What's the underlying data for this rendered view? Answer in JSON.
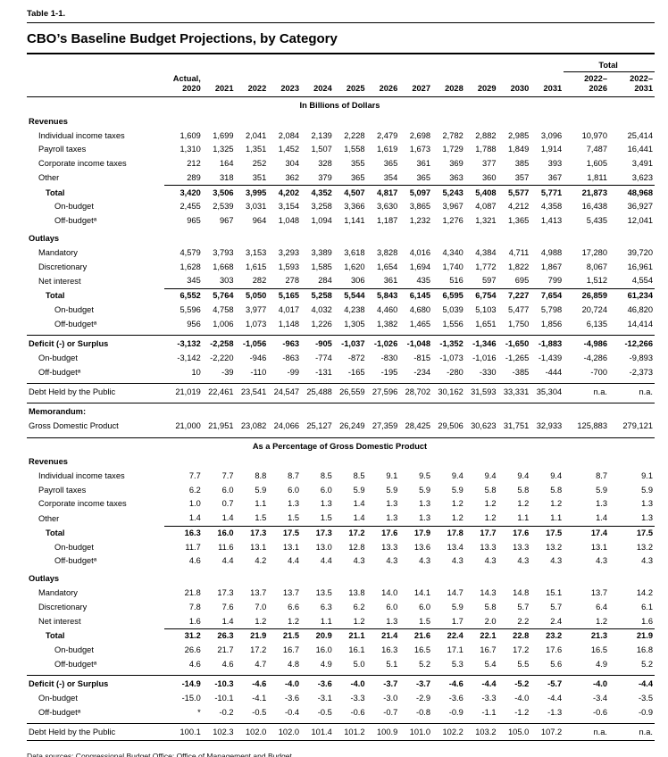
{
  "table_label": "Table 1-1.",
  "title": "CBO’s Baseline Budget Projections, by Category",
  "header": {
    "total_label": "Total",
    "col1": {
      "line1": "Actual,",
      "line2": "2020"
    },
    "years": [
      "2021",
      "2022",
      "2023",
      "2024",
      "2025",
      "2026",
      "2027",
      "2028",
      "2029",
      "2030",
      "2031"
    ],
    "totals": [
      {
        "line1": "2022–",
        "line2": "2026"
      },
      {
        "line1": "2022–",
        "line2": "2031"
      }
    ]
  },
  "rows": [
    {
      "type": "c",
      "label": "In Billions of Dollars"
    },
    {
      "type": "s",
      "label": "Revenues"
    },
    {
      "type": "d",
      "indent": 1,
      "label": "Individual income taxes",
      "values": [
        "1,609",
        "1,699",
        "2,041",
        "2,084",
        "2,139",
        "2,228",
        "2,479",
        "2,698",
        "2,782",
        "2,882",
        "2,985",
        "3,096",
        "10,970",
        "25,414"
      ]
    },
    {
      "type": "d",
      "indent": 1,
      "label": "Payroll taxes",
      "values": [
        "1,310",
        "1,325",
        "1,351",
        "1,452",
        "1,507",
        "1,558",
        "1,619",
        "1,673",
        "1,729",
        "1,788",
        "1,849",
        "1,914",
        "7,487",
        "16,441"
      ]
    },
    {
      "type": "d",
      "indent": 1,
      "label": "Corporate income taxes",
      "values": [
        "212",
        "164",
        "252",
        "304",
        "328",
        "355",
        "365",
        "361",
        "369",
        "377",
        "385",
        "393",
        "1,605",
        "3,491"
      ]
    },
    {
      "type": "d",
      "indent": 1,
      "label": "Other",
      "values": [
        "289",
        "318",
        "351",
        "362",
        "379",
        "365",
        "354",
        "365",
        "363",
        "360",
        "357",
        "367",
        "1,811",
        "3,623"
      ]
    },
    {
      "type": "d",
      "indent": 2,
      "bold": true,
      "rule": "v",
      "label": "Total",
      "values": [
        "3,420",
        "3,506",
        "3,995",
        "4,202",
        "4,352",
        "4,507",
        "4,817",
        "5,097",
        "5,243",
        "5,408",
        "5,577",
        "5,771",
        "21,873",
        "48,968"
      ]
    },
    {
      "type": "d",
      "indent": 3,
      "label": "On-budget",
      "values": [
        "2,455",
        "2,539",
        "3,031",
        "3,154",
        "3,258",
        "3,366",
        "3,630",
        "3,865",
        "3,967",
        "4,087",
        "4,212",
        "4,358",
        "16,438",
        "36,927"
      ]
    },
    {
      "type": "d",
      "indent": 3,
      "label": "Off-budgetᵃ",
      "values": [
        "965",
        "967",
        "964",
        "1,048",
        "1,094",
        "1,141",
        "1,187",
        "1,232",
        "1,276",
        "1,321",
        "1,365",
        "1,413",
        "5,435",
        "12,041"
      ]
    },
    {
      "type": "s",
      "gap": true,
      "label": "Outlays"
    },
    {
      "type": "d",
      "indent": 1,
      "label": "Mandatory",
      "values": [
        "4,579",
        "3,793",
        "3,153",
        "3,293",
        "3,389",
        "3,618",
        "3,828",
        "4,016",
        "4,340",
        "4,384",
        "4,711",
        "4,988",
        "17,280",
        "39,720"
      ]
    },
    {
      "type": "d",
      "indent": 1,
      "label": "Discretionary",
      "values": [
        "1,628",
        "1,668",
        "1,615",
        "1,593",
        "1,585",
        "1,620",
        "1,654",
        "1,694",
        "1,740",
        "1,772",
        "1,822",
        "1,867",
        "8,067",
        "16,961"
      ]
    },
    {
      "type": "d",
      "indent": 1,
      "label": "Net interest",
      "values": [
        "345",
        "303",
        "282",
        "278",
        "284",
        "306",
        "361",
        "435",
        "516",
        "597",
        "695",
        "799",
        "1,512",
        "4,554"
      ]
    },
    {
      "type": "d",
      "indent": 2,
      "bold": true,
      "rule": "v",
      "label": "Total",
      "values": [
        "6,552",
        "5,764",
        "5,050",
        "5,165",
        "5,258",
        "5,544",
        "5,843",
        "6,145",
        "6,595",
        "6,754",
        "7,227",
        "7,654",
        "26,859",
        "61,234"
      ]
    },
    {
      "type": "d",
      "indent": 3,
      "label": "On-budget",
      "values": [
        "5,596",
        "4,758",
        "3,977",
        "4,017",
        "4,032",
        "4,238",
        "4,460",
        "4,680",
        "5,039",
        "5,103",
        "5,477",
        "5,798",
        "20,724",
        "46,820"
      ]
    },
    {
      "type": "d",
      "indent": 3,
      "label": "Off-budgetᵃ",
      "values": [
        "956",
        "1,006",
        "1,073",
        "1,148",
        "1,226",
        "1,305",
        "1,382",
        "1,465",
        "1,556",
        "1,651",
        "1,750",
        "1,856",
        "6,135",
        "14,414"
      ]
    },
    {
      "type": "d",
      "indent": 0,
      "bold": true,
      "gap": true,
      "rule": "f",
      "label": "Deficit (-) or Surplus",
      "values": [
        "-3,132",
        "-2,258",
        "-1,056",
        "-963",
        "-905",
        "-1,037",
        "-1,026",
        "-1,048",
        "-1,352",
        "-1,346",
        "-1,650",
        "-1,883",
        "-4,986",
        "-12,266"
      ]
    },
    {
      "type": "d",
      "indent": 1,
      "label": "On-budget",
      "values": [
        "-3,142",
        "-2,220",
        "-946",
        "-863",
        "-774",
        "-872",
        "-830",
        "-815",
        "-1,073",
        "-1,016",
        "-1,265",
        "-1,439",
        "-4,286",
        "-9,893"
      ]
    },
    {
      "type": "d",
      "indent": 1,
      "label": "Off-budgetᵃ",
      "values": [
        "10",
        "-39",
        "-110",
        "-99",
        "-131",
        "-165",
        "-195",
        "-234",
        "-280",
        "-330",
        "-385",
        "-444",
        "-700",
        "-2,373"
      ]
    },
    {
      "type": "d",
      "indent": 0,
      "gap": true,
      "rule": "f",
      "label": "Debt Held by the Public",
      "values": [
        "21,019",
        "22,461",
        "23,541",
        "24,547",
        "25,488",
        "26,559",
        "27,596",
        "28,702",
        "30,162",
        "31,593",
        "33,331",
        "35,304",
        "n.a.",
        "n.a."
      ]
    },
    {
      "type": "s",
      "gap": true,
      "rule": "f",
      "label": "Memorandum:"
    },
    {
      "type": "d",
      "indent": 0,
      "label": "Gross Domestic Product",
      "values": [
        "21,000",
        "21,951",
        "23,082",
        "24,066",
        "25,127",
        "26,249",
        "27,359",
        "28,425",
        "29,506",
        "30,623",
        "31,751",
        "32,933",
        "125,883",
        "279,121"
      ]
    },
    {
      "type": "c",
      "gap": true,
      "rule": "f",
      "label": "As a Percentage of Gross Domestic Product"
    },
    {
      "type": "s",
      "label": "Revenues"
    },
    {
      "type": "d",
      "indent": 1,
      "label": "Individual income taxes",
      "values": [
        "7.7",
        "7.7",
        "8.8",
        "8.7",
        "8.5",
        "8.5",
        "9.1",
        "9.5",
        "9.4",
        "9.4",
        "9.4",
        "9.4",
        "8.7",
        "9.1"
      ]
    },
    {
      "type": "d",
      "indent": 1,
      "label": "Payroll taxes",
      "values": [
        "6.2",
        "6.0",
        "5.9",
        "6.0",
        "6.0",
        "5.9",
        "5.9",
        "5.9",
        "5.9",
        "5.8",
        "5.8",
        "5.8",
        "5.9",
        "5.9"
      ]
    },
    {
      "type": "d",
      "indent": 1,
      "label": "Corporate income taxes",
      "values": [
        "1.0",
        "0.7",
        "1.1",
        "1.3",
        "1.3",
        "1.4",
        "1.3",
        "1.3",
        "1.2",
        "1.2",
        "1.2",
        "1.2",
        "1.3",
        "1.3"
      ]
    },
    {
      "type": "d",
      "indent": 1,
      "label": "Other",
      "values": [
        "1.4",
        "1.4",
        "1.5",
        "1.5",
        "1.5",
        "1.4",
        "1.3",
        "1.3",
        "1.2",
        "1.2",
        "1.1",
        "1.1",
        "1.4",
        "1.3"
      ]
    },
    {
      "type": "d",
      "indent": 2,
      "bold": true,
      "rule": "v",
      "label": "Total",
      "values": [
        "16.3",
        "16.0",
        "17.3",
        "17.5",
        "17.3",
        "17.2",
        "17.6",
        "17.9",
        "17.8",
        "17.7",
        "17.6",
        "17.5",
        "17.4",
        "17.5"
      ]
    },
    {
      "type": "d",
      "indent": 3,
      "label": "On-budget",
      "values": [
        "11.7",
        "11.6",
        "13.1",
        "13.1",
        "13.0",
        "12.8",
        "13.3",
        "13.6",
        "13.4",
        "13.3",
        "13.3",
        "13.2",
        "13.1",
        "13.2"
      ]
    },
    {
      "type": "d",
      "indent": 3,
      "label": "Off-budgetᵃ",
      "values": [
        "4.6",
        "4.4",
        "4.2",
        "4.4",
        "4.4",
        "4.3",
        "4.3",
        "4.3",
        "4.3",
        "4.3",
        "4.3",
        "4.3",
        "4.3",
        "4.3"
      ]
    },
    {
      "type": "s",
      "gap": true,
      "label": "Outlays"
    },
    {
      "type": "d",
      "indent": 1,
      "label": "Mandatory",
      "values": [
        "21.8",
        "17.3",
        "13.7",
        "13.7",
        "13.5",
        "13.8",
        "14.0",
        "14.1",
        "14.7",
        "14.3",
        "14.8",
        "15.1",
        "13.7",
        "14.2"
      ]
    },
    {
      "type": "d",
      "indent": 1,
      "label": "Discretionary",
      "values": [
        "7.8",
        "7.6",
        "7.0",
        "6.6",
        "6.3",
        "6.2",
        "6.0",
        "6.0",
        "5.9",
        "5.8",
        "5.7",
        "5.7",
        "6.4",
        "6.1"
      ]
    },
    {
      "type": "d",
      "indent": 1,
      "label": "Net interest",
      "values": [
        "1.6",
        "1.4",
        "1.2",
        "1.2",
        "1.1",
        "1.2",
        "1.3",
        "1.5",
        "1.7",
        "2.0",
        "2.2",
        "2.4",
        "1.2",
        "1.6"
      ]
    },
    {
      "type": "d",
      "indent": 2,
      "bold": true,
      "rule": "v",
      "label": "Total",
      "values": [
        "31.2",
        "26.3",
        "21.9",
        "21.5",
        "20.9",
        "21.1",
        "21.4",
        "21.6",
        "22.4",
        "22.1",
        "22.8",
        "23.2",
        "21.3",
        "21.9"
      ]
    },
    {
      "type": "d",
      "indent": 3,
      "label": "On-budget",
      "values": [
        "26.6",
        "21.7",
        "17.2",
        "16.7",
        "16.0",
        "16.1",
        "16.3",
        "16.5",
        "17.1",
        "16.7",
        "17.2",
        "17.6",
        "16.5",
        "16.8"
      ]
    },
    {
      "type": "d",
      "indent": 3,
      "label": "Off-budgetᵃ",
      "values": [
        "4.6",
        "4.6",
        "4.7",
        "4.8",
        "4.9",
        "5.0",
        "5.1",
        "5.2",
        "5.3",
        "5.4",
        "5.5",
        "5.6",
        "4.9",
        "5.2"
      ]
    },
    {
      "type": "d",
      "indent": 0,
      "bold": true,
      "gap": true,
      "rule": "f",
      "label": "Deficit (-) or Surplus",
      "values": [
        "-14.9",
        "-10.3",
        "-4.6",
        "-4.0",
        "-3.6",
        "-4.0",
        "-3.7",
        "-3.7",
        "-4.6",
        "-4.4",
        "-5.2",
        "-5.7",
        "-4.0",
        "-4.4"
      ]
    },
    {
      "type": "d",
      "indent": 1,
      "label": "On-budget",
      "values": [
        "-15.0",
        "-10.1",
        "-4.1",
        "-3.6",
        "-3.1",
        "-3.3",
        "-3.0",
        "-2.9",
        "-3.6",
        "-3.3",
        "-4.0",
        "-4.4",
        "-3.4",
        "-3.5"
      ]
    },
    {
      "type": "d",
      "indent": 1,
      "label": "Off-budgetᵃ",
      "values": [
        "*",
        "-0.2",
        "-0.5",
        "-0.4",
        "-0.5",
        "-0.6",
        "-0.7",
        "-0.8",
        "-0.9",
        "-1.1",
        "-1.2",
        "-1.3",
        "-0.6",
        "-0.9"
      ]
    },
    {
      "type": "d",
      "indent": 0,
      "gap": true,
      "rule": "f",
      "label": "Debt Held by the Public",
      "values": [
        "100.1",
        "102.3",
        "102.0",
        "102.0",
        "101.4",
        "101.2",
        "100.9",
        "101.0",
        "102.2",
        "103.2",
        "105.0",
        "107.2",
        "n.a.",
        "n.a."
      ]
    }
  ],
  "source_note": "Data sources: Congressional Budget Office; Office of Management and Budget."
}
